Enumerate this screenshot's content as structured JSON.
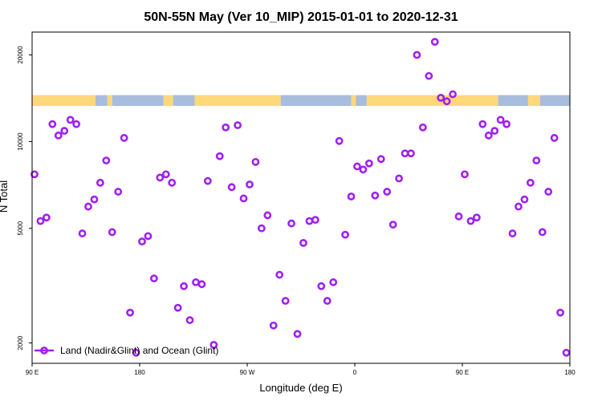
{
  "chart_data": {
    "type": "scatter",
    "title": "50N-55N May (Ver 10_MIP)   2015-01-01 to 2020-12-31",
    "xlabel": "Longitude (deg E)",
    "ylabel": "N Total",
    "x_ticks": [
      {
        "value": 90,
        "label": "90 E"
      },
      {
        "value": 180,
        "label": "180"
      },
      {
        "value": 270,
        "label": "90 W"
      },
      {
        "value": 360,
        "label": "0"
      },
      {
        "value": 450,
        "label": "90 E"
      },
      {
        "value": 540,
        "label": "180"
      }
    ],
    "xlim": [
      90,
      540
    ],
    "y_scale": "log",
    "ylim": [
      1700,
      24000
    ],
    "y_ticks": [
      2000,
      5000,
      10000,
      20000
    ],
    "landmask": {
      "y_range": [
        13300,
        14500
      ],
      "land_color": "#FFD87A",
      "ocean_color": "#A8BCDD",
      "segments": [
        {
          "type": "land",
          "from": 90,
          "to": 143
        },
        {
          "type": "ocean",
          "from": 143,
          "to": 153
        },
        {
          "type": "land",
          "from": 153,
          "to": 157
        },
        {
          "type": "ocean",
          "from": 157,
          "to": 200
        },
        {
          "type": "land",
          "from": 200,
          "to": 208
        },
        {
          "type": "ocean",
          "from": 208,
          "to": 226
        },
        {
          "type": "land",
          "from": 226,
          "to": 298
        },
        {
          "type": "ocean",
          "from": 298,
          "to": 357
        },
        {
          "type": "land",
          "from": 357,
          "to": 361
        },
        {
          "type": "ocean",
          "from": 361,
          "to": 370
        },
        {
          "type": "land",
          "from": 370,
          "to": 480
        },
        {
          "type": "ocean",
          "from": 480,
          "to": 505
        },
        {
          "type": "land",
          "from": 505,
          "to": 515
        },
        {
          "type": "ocean",
          "from": 515,
          "to": 540
        }
      ]
    },
    "series": [
      {
        "name": "Land (Nadir&Glint) and Ocean (Glint)",
        "color": "#A020F0",
        "marker": "open-circle",
        "points": [
          [
            92,
            7700
          ],
          [
            97,
            5300
          ],
          [
            102,
            5450
          ],
          [
            107,
            11500
          ],
          [
            112,
            10500
          ],
          [
            117,
            10900
          ],
          [
            122,
            11900
          ],
          [
            127,
            11500
          ],
          [
            132,
            4800
          ],
          [
            137,
            5950
          ],
          [
            142,
            6300
          ],
          [
            147,
            7200
          ],
          [
            152,
            8600
          ],
          [
            157,
            4850
          ],
          [
            162,
            6700
          ],
          [
            167,
            10300
          ],
          [
            172,
            2550
          ],
          [
            177,
            1850
          ],
          [
            182,
            4500
          ],
          [
            187,
            4700
          ],
          [
            192,
            3350
          ],
          [
            197,
            7500
          ],
          [
            202,
            7700
          ],
          [
            207,
            7200
          ],
          [
            212,
            2650
          ],
          [
            217,
            3150
          ],
          [
            222,
            2400
          ],
          [
            227,
            3250
          ],
          [
            232,
            3200
          ],
          [
            237,
            7300
          ],
          [
            242,
            1970
          ],
          [
            247,
            8900
          ],
          [
            252,
            11200
          ],
          [
            257,
            6950
          ],
          [
            262,
            11400
          ],
          [
            267,
            6350
          ],
          [
            272,
            7100
          ],
          [
            277,
            8500
          ],
          [
            282,
            5000
          ],
          [
            287,
            5550
          ],
          [
            292,
            2300
          ],
          [
            297,
            3450
          ],
          [
            302,
            2800
          ],
          [
            307,
            5200
          ],
          [
            312,
            2150
          ],
          [
            317,
            4450
          ],
          [
            322,
            5300
          ],
          [
            327,
            5350
          ],
          [
            332,
            3150
          ],
          [
            337,
            2800
          ],
          [
            342,
            3250
          ],
          [
            347,
            10050
          ],
          [
            352,
            4750
          ],
          [
            357,
            6450
          ],
          [
            362,
            8200
          ],
          [
            367,
            8000
          ],
          [
            372,
            8400
          ],
          [
            377,
            6500
          ],
          [
            382,
            8700
          ],
          [
            387,
            6700
          ],
          [
            392,
            5150
          ],
          [
            397,
            7450
          ],
          [
            402,
            9100
          ],
          [
            407,
            9100
          ],
          [
            412,
            20000
          ],
          [
            417,
            11200
          ],
          [
            422,
            16900
          ],
          [
            427,
            22200
          ],
          [
            432,
            14200
          ],
          [
            437,
            13800
          ],
          [
            442,
            14600
          ],
          [
            447,
            5500
          ],
          [
            452,
            7700
          ],
          [
            457,
            5300
          ],
          [
            462,
            5450
          ],
          [
            467,
            11500
          ],
          [
            472,
            10500
          ],
          [
            477,
            10900
          ],
          [
            482,
            11900
          ],
          [
            487,
            11500
          ],
          [
            492,
            4800
          ],
          [
            497,
            5950
          ],
          [
            502,
            6300
          ],
          [
            507,
            7200
          ],
          [
            512,
            8600
          ],
          [
            517,
            4850
          ],
          [
            522,
            6700
          ],
          [
            527,
            10300
          ],
          [
            532,
            2550
          ],
          [
            537,
            1850
          ]
        ]
      }
    ],
    "legend": {
      "position": "bottom-left",
      "label": "Land (Nadir&Glint) and Ocean (Glint)"
    }
  }
}
